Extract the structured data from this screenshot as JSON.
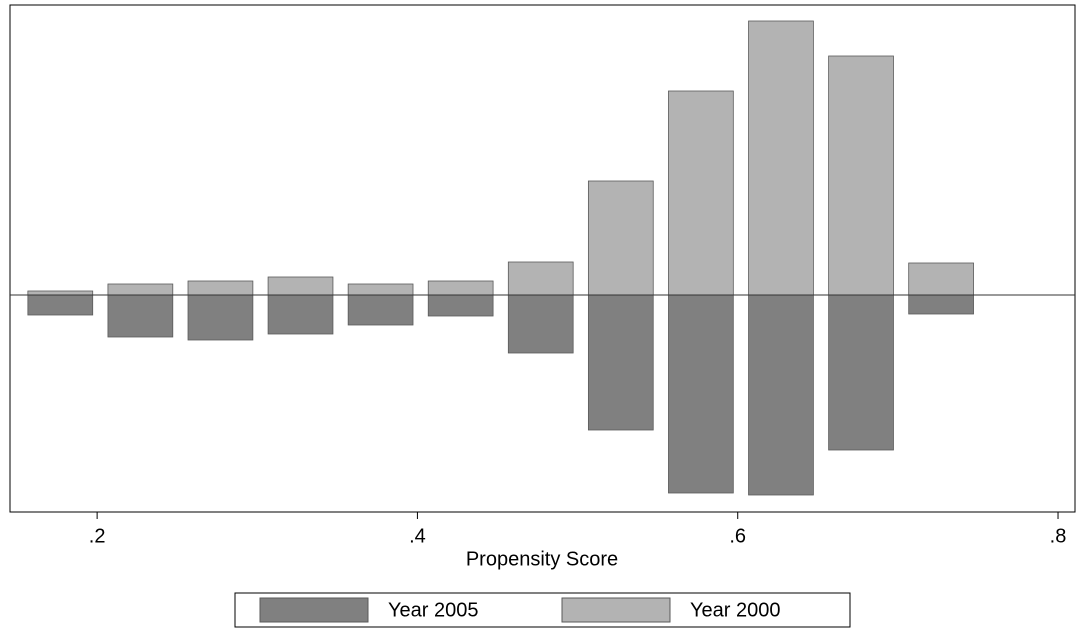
{
  "chart_data": {
    "type": "histogram",
    "x_label": "Propensity Score",
    "bins": [
      0.152,
      0.202,
      0.252,
      0.302,
      0.352,
      0.402,
      0.452,
      0.502,
      0.552,
      0.602,
      0.652,
      0.702,
      0.752
    ],
    "series": [
      {
        "name": "Year 2005",
        "color": "#808080",
        "values": [
          -20,
          -42,
          -45,
          -39,
          -30,
          -21,
          -58,
          -135,
          -198,
          -200,
          -155,
          -19
        ]
      },
      {
        "name": "Year 2000",
        "color": "#b3b3b3",
        "values": [
          4,
          11,
          14,
          18,
          11,
          14,
          33,
          114,
          204,
          274,
          239,
          32
        ]
      }
    ],
    "xlim": [
      0.1456,
      0.8106
    ],
    "xticks": [
      {
        "value": 0.2,
        "label": ".2"
      },
      {
        "value": 0.4,
        "label": ".4"
      },
      {
        "value": 0.6,
        "label": ".6"
      },
      {
        "value": 0.8,
        "label": ".8"
      }
    ],
    "ylim": [
      -217,
      290
    ],
    "legend": "bottom"
  }
}
